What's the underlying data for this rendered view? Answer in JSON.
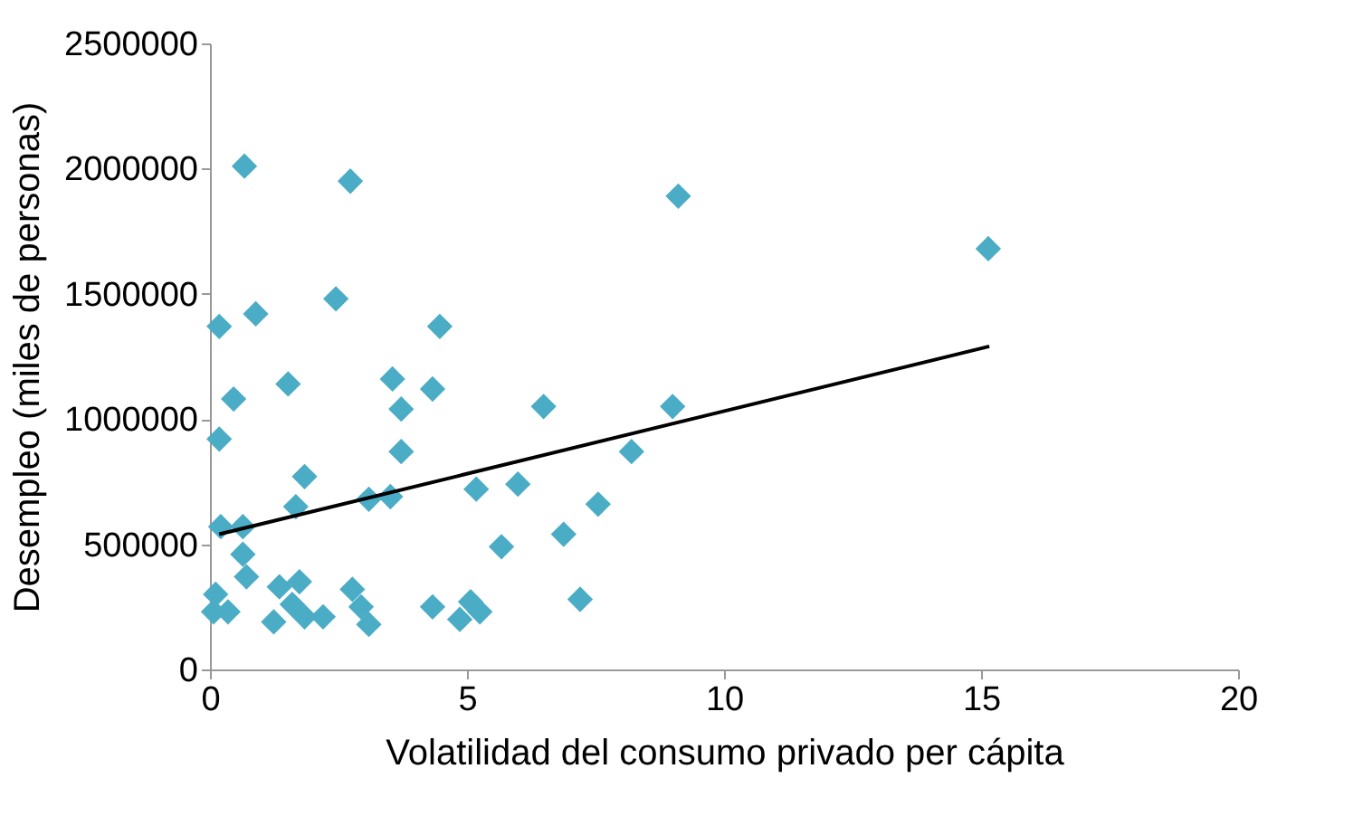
{
  "chart_data": {
    "type": "scatter",
    "xlabel": "Volatilidad del consumo privado per cápita",
    "ylabel": "Desempleo (miles de personas)",
    "marker": "diamond",
    "grid": false,
    "xlim": [
      0,
      20
    ],
    "xticks": [
      0,
      5,
      10,
      15,
      20
    ],
    "ylim": [
      0,
      2500000
    ],
    "yticks": [
      0,
      500000,
      1000000,
      1500000,
      2000000,
      2500000
    ],
    "series": [
      {
        "color": "#4bacc6",
        "x": [
          0.67,
          2.73,
          2.45,
          0.18,
          0.89,
          4.47,
          1.52,
          0.46,
          3.55,
          4.33,
          3.72,
          6.49,
          0.18,
          3.72,
          1.84,
          1.67,
          3.09,
          3.51,
          5.18,
          5.99,
          5.67,
          0.21,
          0.64,
          0.64,
          0.71,
          0.11,
          0.35,
          0.07,
          1.35,
          1.74,
          1.24,
          1.84,
          2.2,
          1.6,
          2.77,
          2.94,
          3.09,
          4.33,
          4.86,
          5.07,
          5.25,
          9.11,
          15.14,
          9.0,
          8.2,
          7.55,
          6.88,
          7.2
        ],
        "values": [
          2010000,
          1950000,
          1480000,
          1370000,
          1420000,
          1370000,
          1140000,
          1080000,
          1160000,
          1120000,
          1040000,
          1050000,
          920000,
          870000,
          770000,
          650000,
          680000,
          690000,
          720000,
          740000,
          490000,
          570000,
          570000,
          460000,
          370000,
          300000,
          230000,
          230000,
          330000,
          350000,
          190000,
          210000,
          210000,
          260000,
          320000,
          250000,
          180000,
          250000,
          200000,
          270000,
          230000,
          1890000,
          1680000,
          1050000,
          870000,
          660000,
          540000,
          280000
        ]
      },
      {
        "color": "#000000",
        "type": "line",
        "marker": "none",
        "x": [
          0.18,
          15.16
        ],
        "values": [
          540000,
          1290000
        ]
      }
    ]
  }
}
